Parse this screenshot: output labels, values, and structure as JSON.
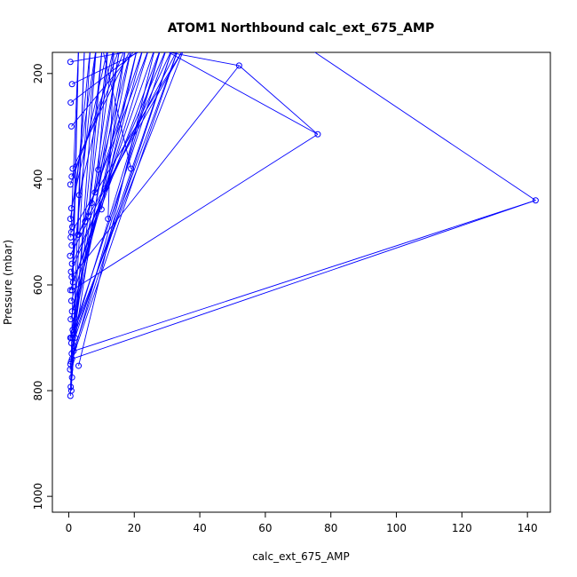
{
  "chart_data": {
    "type": "scatter",
    "title": "ATOM1 Northbound calc_ext_675_AMP",
    "xlabel": "calc_ext_675_AMP",
    "ylabel": "Pressure (mbar)",
    "xlim": [
      -5,
      147
    ],
    "ylim": [
      1030,
      160
    ],
    "y_reversed": true,
    "x_ticks": [
      0,
      20,
      40,
      60,
      80,
      100,
      120,
      140
    ],
    "y_ticks": [
      200,
      400,
      600,
      800,
      1000
    ],
    "grid": false,
    "legend": "none",
    "color": "#0000ff",
    "series": [
      {
        "values": [
          [
            0.5,
            810
          ],
          [
            0.8,
            800
          ],
          [
            0.6,
            793
          ],
          [
            1.0,
            775
          ],
          [
            0.4,
            760
          ],
          [
            0.7,
            745
          ],
          [
            0.9,
            730
          ],
          [
            1.6,
            716
          ],
          [
            0.5,
            700
          ],
          [
            1.2,
            685
          ],
          [
            0.6,
            665
          ],
          [
            1.0,
            650
          ],
          [
            0.8,
            630
          ],
          [
            0.5,
            610
          ],
          [
            1.3,
            595
          ],
          [
            0.7,
            575
          ],
          [
            1.0,
            560
          ],
          [
            0.4,
            545
          ],
          [
            0.9,
            525
          ],
          [
            0.6,
            510
          ],
          [
            2.8,
            505
          ],
          [
            1.1,
            490
          ],
          [
            0.5,
            475
          ],
          [
            6.0,
            470
          ],
          [
            0.8,
            455
          ],
          [
            3.2,
            430
          ],
          [
            0.5,
            410
          ],
          [
            0.9,
            395
          ],
          [
            1.2,
            380
          ],
          [
            0.8,
            300
          ],
          [
            0.6,
            255
          ],
          [
            1.0,
            220
          ],
          [
            0.5,
            178
          ],
          [
            1.0,
            740
          ],
          [
            142.5,
            440
          ],
          [
            1.5,
            725
          ],
          [
            0.8,
            710
          ],
          [
            1.4,
            690
          ],
          [
            1.0,
            610
          ],
          [
            76,
            315
          ],
          [
            52,
            185
          ],
          [
            0.9,
            585
          ],
          [
            19,
            380
          ],
          [
            9,
            382
          ],
          [
            12,
            475
          ],
          [
            8,
            425
          ],
          [
            11,
            418
          ],
          [
            7,
            445
          ],
          [
            10,
            457
          ],
          [
            5,
            480
          ],
          [
            3,
            505
          ],
          [
            3,
            753
          ],
          [
            1.2,
            700
          ],
          [
            0.7,
            700
          ],
          [
            1.9,
            700
          ],
          [
            0.5,
            750
          ],
          [
            0.8,
            500
          ]
        ]
      }
    ]
  }
}
